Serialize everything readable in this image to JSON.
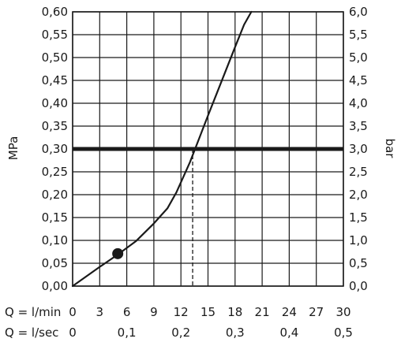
{
  "chart_data": {
    "type": "line",
    "title": "",
    "ylabel_left": "MPa",
    "ylabel_right": "bar",
    "x_primary_label": "Q = l/min",
    "x_secondary_label": "Q = l/sec",
    "x_primary_ticks": [
      "0",
      "3",
      "6",
      "9",
      "12",
      "15",
      "18",
      "21",
      "24",
      "27",
      "30"
    ],
    "x_secondary_ticks": [
      {
        "value": 0,
        "label": "0"
      },
      {
        "value": 0.1,
        "label": "0,1"
      },
      {
        "value": 0.2,
        "label": "0,2"
      },
      {
        "value": 0.3,
        "label": "0,3"
      },
      {
        "value": 0.4,
        "label": "0,4"
      },
      {
        "value": 0.5,
        "label": "0,5"
      }
    ],
    "y_left_ticks": [
      "0,00",
      "0,05",
      "0,10",
      "0,15",
      "0,20",
      "0,25",
      "0,30",
      "0,35",
      "0,40",
      "0,45",
      "0,50",
      "0,55",
      "0,60"
    ],
    "y_right_ticks": [
      "0,0",
      "0,5",
      "1,0",
      "1,5",
      "2,0",
      "2,5",
      "3,0",
      "3,5",
      "4,0",
      "4,5",
      "5,0",
      "5,5",
      "6,0"
    ],
    "xlim": [
      0,
      30
    ],
    "ylim": [
      0,
      0.6
    ],
    "grid": true,
    "curve": {
      "x": [
        0,
        3,
        5,
        7,
        9,
        10.5,
        11.5,
        13,
        14,
        15,
        16,
        17,
        18,
        19,
        19.8
      ],
      "y": [
        0,
        0.042,
        0.069,
        0.098,
        0.137,
        0.17,
        0.205,
        0.271,
        0.322,
        0.373,
        0.423,
        0.473,
        0.523,
        0.572,
        0.6
      ]
    },
    "marker": {
      "x": 5,
      "y": 0.071
    },
    "reference_line": {
      "y": 0.3
    },
    "reference_drop": {
      "x": 13.3,
      "y": 0.3
    }
  }
}
